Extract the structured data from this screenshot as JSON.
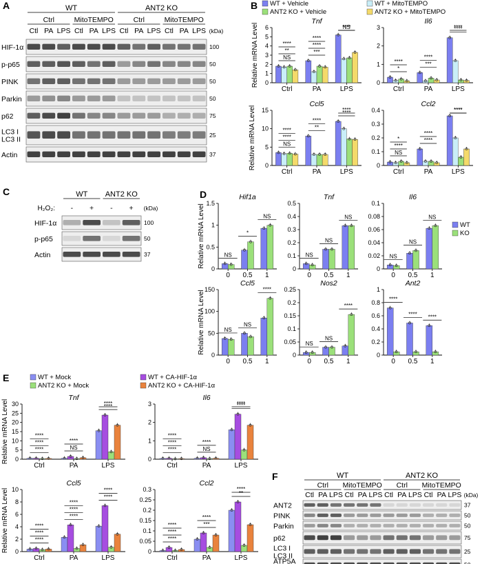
{
  "panels": {
    "A": "A",
    "B": "B",
    "C": "C",
    "D": "D",
    "E": "E",
    "F": "F"
  },
  "colors": {
    "wt_vehicle": "#7b7ff0",
    "wt_mito": "#c9eef8",
    "ko_vehicle": "#9be07a",
    "ko_mito": "#f4da6a",
    "wt": "#7b7ff0",
    "ko": "#9be07a",
    "wt_mock": "#8a8ef2",
    "wt_ca": "#a64de0",
    "ko_mock": "#9be07a",
    "ko_ca": "#e9833d"
  },
  "blotA": {
    "groups": [
      {
        "label": "WT"
      },
      {
        "label": "ANT2 KO"
      }
    ],
    "subgroups": [
      "Ctrl",
      "MitoTEMPO",
      "Ctrl",
      "MitoTEMPO"
    ],
    "lanes": [
      "Ctl",
      "PA",
      "LPS",
      "Ctl",
      "PA",
      "LPS",
      "Ctl",
      "PA",
      "LPS",
      "Ctl",
      "PA",
      "LPS"
    ],
    "kda": "(kDa)",
    "rows": [
      {
        "label": "HIF-1α",
        "marker": "100"
      },
      {
        "label": "p-p65",
        "marker": "50"
      },
      {
        "label": "PINK",
        "marker": "50"
      },
      {
        "label": "Parkin",
        "marker": "50"
      },
      {
        "label": "p62",
        "marker": "75"
      },
      {
        "label": "LC3 I\nLC3 II",
        "marker": "25"
      },
      {
        "label": "Actin",
        "marker": "37"
      }
    ],
    "extra_markers": [
      "50"
    ]
  },
  "blotC": {
    "groups": [
      "WT",
      "ANT2 KO"
    ],
    "treat_label": "H₂O₂:",
    "lanes": [
      "-",
      "+",
      "-",
      "+"
    ],
    "kda": "(kDa)",
    "rows": [
      {
        "label": "HIF-1α",
        "marker": "100"
      },
      {
        "label": "p-p65",
        "marker": "50"
      },
      {
        "label": "Actin",
        "marker": "37"
      }
    ]
  },
  "blotF": {
    "groups": [
      "WT",
      "ANT2 KO"
    ],
    "subgroups": [
      "Ctrl",
      "MitoTEMPO",
      "Ctrl",
      "MitoTEMPO"
    ],
    "lanes": [
      "Ctl",
      "PA",
      "LPS",
      "Ctl",
      "PA",
      "LPS",
      "Ctl",
      "PA",
      "LPS",
      "Ctl",
      "PA",
      "LPS"
    ],
    "kda": "(kDa)",
    "rows": [
      {
        "label": "ANT2",
        "marker": "37"
      },
      {
        "label": "PINK",
        "marker": "50"
      },
      {
        "label": "Parkin",
        "marker": "50"
      },
      {
        "label": "p62",
        "marker": "75"
      },
      {
        "label": "LC3 I\nLC3 II",
        "marker": "25"
      },
      {
        "label": "ATP5A\nUQCRC2",
        "marker": "50"
      }
    ]
  },
  "legendB": [
    "WT + Vehicle",
    "WT + MitoTEMPO",
    "ANT2 KO + Vehicle",
    "ANT2 KO + MitoTEMPO"
  ],
  "legendD": [
    "WT",
    "KO"
  ],
  "legendE": [
    "WT + Mock",
    "WT + CA-HIF-1α",
    "ANT2 KO + Mock",
    "ANT2 KO + CA-HIF-1α"
  ],
  "chart_data": [
    {
      "panel": "B",
      "type": "bar",
      "title": "Tnf",
      "ylabel": "Relative mRNA Level",
      "categories": [
        "Ctrl",
        "PA",
        "LPS"
      ],
      "ylim": [
        0,
        6
      ],
      "yticks": [
        0,
        1,
        2,
        3,
        4,
        5,
        6
      ],
      "series": [
        {
          "name": "WT + Vehicle",
          "values": [
            1.8,
            2.4,
            5.2
          ]
        },
        {
          "name": "WT + MitoTEMPO",
          "values": [
            1.7,
            1.2,
            2.6
          ]
        },
        {
          "name": "ANT2 KO + Vehicle",
          "values": [
            1.8,
            1.8,
            2.7
          ]
        },
        {
          "name": "ANT2 KO + MitoTEMPO",
          "values": [
            1.4,
            1.7,
            3.3
          ]
        }
      ],
      "annotations": [
        "NS",
        "***",
        "NS",
        "**",
        "****",
        "****",
        "****",
        "****"
      ]
    },
    {
      "panel": "B",
      "type": "bar",
      "title": "Il6",
      "ylabel": "",
      "categories": [
        "Ctrl",
        "PA",
        "LPS"
      ],
      "ylim": [
        0,
        3
      ],
      "yticks": [
        0,
        1,
        2,
        3
      ],
      "series": [
        {
          "name": "WT + Vehicle",
          "values": [
            0.3,
            0.55,
            2.45
          ]
        },
        {
          "name": "WT + MitoTEMPO",
          "values": [
            0.12,
            0.1,
            1.2
          ]
        },
        {
          "name": "ANT2 KO + Vehicle",
          "values": [
            0.2,
            0.25,
            0.15
          ]
        },
        {
          "name": "ANT2 KO + MitoTEMPO",
          "values": [
            0.1,
            0.15,
            0.12
          ]
        }
      ],
      "annotations": [
        "*",
        "***",
        "****",
        "****",
        "****",
        "****"
      ]
    },
    {
      "panel": "B",
      "type": "bar",
      "title": "Ccl5",
      "ylabel": "Relative mRNA Level",
      "categories": [
        "Ctrl",
        "PA",
        "LPS"
      ],
      "ylim": [
        0,
        15
      ],
      "yticks": [
        0,
        5,
        10,
        15
      ],
      "series": [
        {
          "name": "WT + Vehicle",
          "values": [
            3.5,
            8,
            12
          ]
        },
        {
          "name": "WT + MitoTEMPO",
          "values": [
            3.2,
            3,
            10
          ]
        },
        {
          "name": "ANT2 KO + Vehicle",
          "values": [
            3.3,
            3,
            7.2
          ]
        },
        {
          "name": "ANT2 KO + MitoTEMPO",
          "values": [
            3.1,
            3,
            7.1
          ]
        }
      ],
      "annotations": [
        "NS",
        "**",
        "****",
        "****",
        "****",
        "****",
        "****"
      ]
    },
    {
      "panel": "B",
      "type": "bar",
      "title": "Ccl2",
      "ylabel": "",
      "categories": [
        "Ctrl",
        "PA",
        "LPS"
      ],
      "ylim": [
        0,
        0.4
      ],
      "yticks": [
        0,
        0.1,
        0.2,
        0.3,
        0.4
      ],
      "series": [
        {
          "name": "WT + Vehicle",
          "values": [
            0.025,
            0.12,
            0.36
          ]
        },
        {
          "name": "WT + MitoTEMPO",
          "values": [
            0.02,
            0.03,
            0.2
          ]
        },
        {
          "name": "ANT2 KO + Vehicle",
          "values": [
            0.03,
            0.03,
            0.06
          ]
        },
        {
          "name": "ANT2 KO + MitoTEMPO",
          "values": [
            0.02,
            0.02,
            0.12
          ]
        }
      ],
      "annotations": [
        "NS",
        "****",
        "****",
        "****",
        "****",
        "****",
        "*"
      ]
    },
    {
      "panel": "D",
      "type": "bar",
      "title": "Hif1a",
      "ylabel": "Relative mRNA Level",
      "categories": [
        "0",
        "0.5",
        "1"
      ],
      "ylim": [
        0,
        1.5
      ],
      "yticks": [
        0,
        0.5,
        1,
        1.5
      ],
      "series": [
        {
          "name": "WT",
          "values": [
            0.12,
            0.43,
            0.93
          ]
        },
        {
          "name": "KO",
          "values": [
            0.1,
            0.62,
            1.0
          ]
        }
      ],
      "annotations": [
        "NS",
        "*",
        "NS"
      ]
    },
    {
      "panel": "D",
      "type": "bar",
      "title": "Tnf",
      "ylabel": "",
      "categories": [
        "0",
        "0.5",
        "1"
      ],
      "ylim": [
        0,
        0.5
      ],
      "yticks": [
        0,
        0.1,
        0.2,
        0.3,
        0.4,
        0.5
      ],
      "series": [
        {
          "name": "WT",
          "values": [
            0.04,
            0.15,
            0.33
          ]
        },
        {
          "name": "KO",
          "values": [
            0.03,
            0.15,
            0.33
          ]
        }
      ],
      "annotations": [
        "NS",
        "NS",
        "NS"
      ]
    },
    {
      "panel": "D",
      "type": "bar",
      "title": "Il6",
      "ylabel": "",
      "categories": [
        "0",
        "0.5",
        "1"
      ],
      "ylim": [
        0,
        0.1
      ],
      "yticks": [
        0,
        0.02,
        0.04,
        0.06,
        0.08,
        0.1
      ],
      "series": [
        {
          "name": "WT",
          "values": [
            0.006,
            0.024,
            0.062
          ]
        },
        {
          "name": "KO",
          "values": [
            0.005,
            0.028,
            0.066
          ]
        }
      ],
      "annotations": [
        "NS",
        "NS",
        "NS"
      ]
    },
    {
      "panel": "D",
      "type": "bar",
      "title": "Ccl5",
      "ylabel": "Relative mRNA Level",
      "categories": [
        "0",
        "0.5",
        "1"
      ],
      "ylim": [
        0,
        150
      ],
      "yticks": [
        0,
        50,
        100,
        150
      ],
      "series": [
        {
          "name": "WT",
          "values": [
            38,
            50,
            85
          ]
        },
        {
          "name": "KO",
          "values": [
            36,
            42,
            130
          ]
        }
      ],
      "annotations": [
        "NS",
        "NS",
        "****"
      ]
    },
    {
      "panel": "D",
      "type": "bar",
      "title": "Nos2",
      "ylabel": "",
      "categories": [
        "0",
        "0.5",
        "1"
      ],
      "ylim": [
        0,
        0.25
      ],
      "yticks": [
        0,
        0.05,
        0.1,
        0.15,
        0.2,
        0.25
      ],
      "series": [
        {
          "name": "WT",
          "values": [
            0.01,
            0.03,
            0.035
          ]
        },
        {
          "name": "KO",
          "values": [
            0.01,
            0.03,
            0.155
          ]
        }
      ],
      "annotations": [
        "NS",
        "NS",
        "****"
      ]
    },
    {
      "panel": "D",
      "type": "bar",
      "title": "Ant2",
      "ylabel": "",
      "categories": [
        "0",
        "0.5",
        "1"
      ],
      "ylim": [
        0,
        1.0
      ],
      "yticks": [
        0,
        0.2,
        0.4,
        0.6,
        0.8,
        1.0
      ],
      "series": [
        {
          "name": "WT",
          "values": [
            0.72,
            0.49,
            0.45
          ]
        },
        {
          "name": "KO",
          "values": [
            0.05,
            0.05,
            0.05
          ]
        }
      ],
      "annotations": [
        "****",
        "****",
        "****"
      ]
    },
    {
      "panel": "E",
      "type": "bar",
      "title": "Tnf",
      "ylabel": "Relative mRNA Level",
      "categories": [
        "Ctrl",
        "PA",
        "LPS"
      ],
      "ylim": [
        0,
        30
      ],
      "yticks": [
        0,
        5,
        10,
        15,
        20,
        25,
        30
      ],
      "series": [
        {
          "name": "WT + Mock",
          "values": [
            0.5,
            0.5,
            15.5
          ]
        },
        {
          "name": "WT + CA-HIF-1α",
          "values": [
            0.5,
            1.5,
            24
          ]
        },
        {
          "name": "ANT2 KO + Mock",
          "values": [
            0.3,
            0.3,
            4
          ]
        },
        {
          "name": "ANT2 KO + CA-HIF-1α",
          "values": [
            0.4,
            0.8,
            18.5
          ]
        }
      ],
      "annotations": [
        "****",
        "NS",
        "****",
        "****",
        "****",
        "****",
        "****"
      ]
    },
    {
      "panel": "E",
      "type": "bar",
      "title": "Il6",
      "ylabel": "",
      "categories": [
        "Ctrl",
        "PA",
        "LPS"
      ],
      "ylim": [
        0,
        3
      ],
      "yticks": [
        0,
        1,
        2,
        3
      ],
      "series": [
        {
          "name": "WT + Mock",
          "values": [
            0.04,
            0.05,
            1.6
          ]
        },
        {
          "name": "WT + CA-HIF-1α",
          "values": [
            0.05,
            0.08,
            2.45
          ]
        },
        {
          "name": "ANT2 KO + Mock",
          "values": [
            0.02,
            0.03,
            0.5
          ]
        },
        {
          "name": "ANT2 KO + CA-HIF-1α",
          "values": [
            0.03,
            0.05,
            1.85
          ]
        }
      ],
      "annotations": [
        "****",
        "NS",
        "****",
        "****",
        "****",
        "****",
        "****"
      ]
    },
    {
      "panel": "E",
      "type": "bar",
      "title": "Ccl5",
      "ylabel": "Relative mRNA Level",
      "categories": [
        "Ctrl",
        "PA",
        "LPS"
      ],
      "ylim": [
        0,
        10
      ],
      "yticks": [
        0,
        2,
        4,
        6,
        8,
        10
      ],
      "series": [
        {
          "name": "WT + Mock",
          "values": [
            0.4,
            2.3,
            4.1
          ]
        },
        {
          "name": "WT + CA-HIF-1α",
          "values": [
            0.5,
            4.3,
            7.4
          ]
        },
        {
          "name": "ANT2 KO + Mock",
          "values": [
            0.3,
            0.5,
            0.7
          ]
        },
        {
          "name": "ANT2 KO + CA-HIF-1α",
          "values": [
            0.4,
            1.1,
            2.8
          ]
        }
      ],
      "annotations": [
        "****",
        "****",
        "****",
        "****",
        "****",
        "****",
        "****",
        "****"
      ]
    },
    {
      "panel": "E",
      "type": "bar",
      "title": "Ccl2",
      "ylabel": "",
      "categories": [
        "Ctrl",
        "PA",
        "LPS"
      ],
      "ylim": [
        0,
        0.3
      ],
      "yticks": [
        0,
        0.05,
        0.1,
        0.15,
        0.2,
        0.25,
        0.3
      ],
      "series": [
        {
          "name": "WT + Mock",
          "values": [
            0.005,
            0.06,
            0.2
          ]
        },
        {
          "name": "WT + CA-HIF-1α",
          "values": [
            0.02,
            0.09,
            0.24
          ]
        },
        {
          "name": "ANT2 KO + Mock",
          "values": [
            0.005,
            0.02,
            0.03
          ]
        },
        {
          "name": "ANT2 KO + CA-HIF-1α",
          "values": [
            0.01,
            0.08,
            0.13
          ]
        }
      ],
      "annotations": [
        "****",
        "***",
        "**",
        "****",
        "****",
        "****",
        "****"
      ]
    }
  ]
}
